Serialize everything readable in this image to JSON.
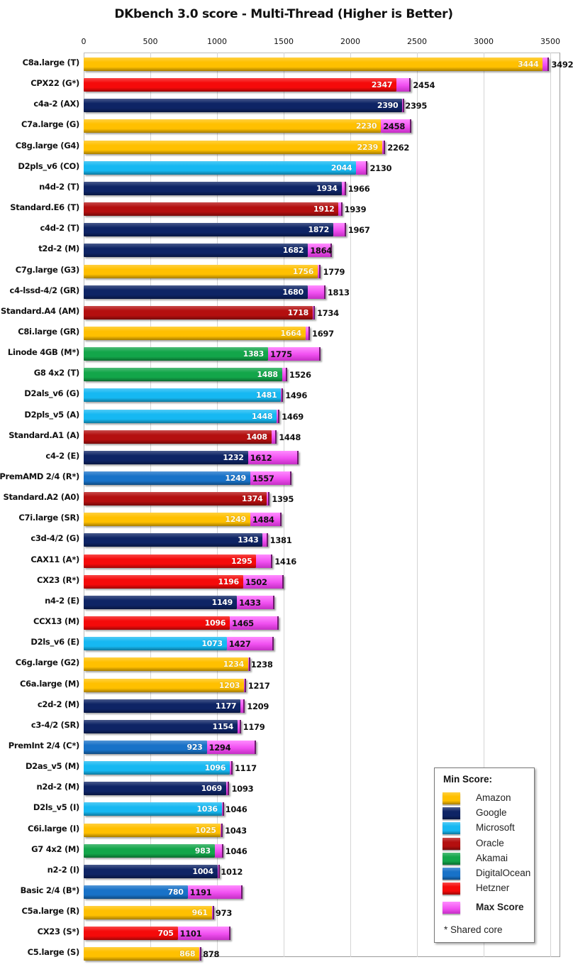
{
  "chart_data": {
    "type": "bar",
    "orientation": "horizontal",
    "title": "DKbench 3.0 score - Multi-Thread (Higher is Better)",
    "xlabel": "",
    "ylabel": "",
    "xlim": [
      0,
      3500
    ],
    "x_ticks": [
      "0",
      "500",
      "1000",
      "1500",
      "2000",
      "2500",
      "3000",
      "3500"
    ],
    "grid": true,
    "legend_position": "bottom-right",
    "legend": {
      "title": "Min Score:",
      "items": [
        {
          "name": "Amazon",
          "color": "#FFC000"
        },
        {
          "name": "Google",
          "color": "#0E2465"
        },
        {
          "name": "Microsoft",
          "color": "#16B8F2"
        },
        {
          "name": "Oracle",
          "color": "#B40F0F"
        },
        {
          "name": "Akamai",
          "color": "#13A64A"
        },
        {
          "name": "DigitalOcean",
          "color": "#1872C8"
        },
        {
          "name": "Hetzner",
          "color": "#F50A0A"
        }
      ],
      "max_label": "Max Score",
      "max_color": "#F050F0",
      "note": "* Shared core"
    },
    "categories": [
      "C8a.large (T)",
      "CPX22 (G*)",
      "c4a-2 (AX)",
      "C7a.large (G)",
      "C8g.large (G4)",
      "D2pls_v6 (CO)",
      "n4d-2 (T)",
      "Standard.E6 (T)",
      "c4d-2 (T)",
      "t2d-2 (M)",
      "C7g.large (G3)",
      "c4-lssd-4/2 (GR)",
      "Standard.A4 (AM)",
      "C8i.large (GR)",
      "Linode 4GB (M*)",
      "G8 4x2 (T)",
      "D2als_v6 (G)",
      "D2pls_v5 (A)",
      "Standard.A1 (A)",
      "c4-2 (E)",
      "PremAMD 2/4 (R*)",
      "Standard.A2 (A0)",
      "C7i.large (SR)",
      "c3d-4/2 (G)",
      "CAX11 (A*)",
      "CX23 (R*)",
      "n4-2 (E)",
      "CCX13 (M)",
      "D2ls_v6 (E)",
      "C6g.large (G2)",
      "C6a.large (M)",
      "c2d-2 (M)",
      "c3-4/2 (SR)",
      "PremInt 2/4 (C*)",
      "D2as_v5 (M)",
      "n2d-2 (M)",
      "D2ls_v5 (I)",
      "C6i.large (I)",
      "G7 4x2 (M)",
      "n2-2 (I)",
      "Basic 2/4 (B*)",
      "C5a.large (R)",
      "CX23 (S*)",
      "C5.large (S)"
    ],
    "providers": [
      "Amazon",
      "Hetzner",
      "Google",
      "Amazon",
      "Amazon",
      "Microsoft",
      "Google",
      "Oracle",
      "Google",
      "Google",
      "Amazon",
      "Google",
      "Oracle",
      "Amazon",
      "Akamai",
      "Akamai",
      "Microsoft",
      "Microsoft",
      "Oracle",
      "Google",
      "DigitalOcean",
      "Oracle",
      "Amazon",
      "Google",
      "Hetzner",
      "Hetzner",
      "Google",
      "Hetzner",
      "Microsoft",
      "Amazon",
      "Amazon",
      "Google",
      "Google",
      "DigitalOcean",
      "Microsoft",
      "Google",
      "Microsoft",
      "Amazon",
      "Akamai",
      "Google",
      "DigitalOcean",
      "Amazon",
      "Hetzner",
      "Amazon"
    ],
    "series": [
      {
        "name": "Min Score",
        "values": [
          3444,
          2347,
          2390,
          2230,
          2239,
          2044,
          1934,
          1912,
          1872,
          1682,
          1756,
          1680,
          1718,
          1664,
          1383,
          1488,
          1481,
          1448,
          1408,
          1232,
          1249,
          1374,
          1249,
          1343,
          1295,
          1196,
          1149,
          1096,
          1073,
          1234,
          1203,
          1177,
          1154,
          923,
          1096,
          1069,
          1036,
          1025,
          983,
          1004,
          780,
          961,
          705,
          868
        ]
      },
      {
        "name": "Max Score",
        "values": [
          3492,
          2454,
          2395,
          2458,
          2262,
          2130,
          1966,
          1939,
          1967,
          1864,
          1779,
          1813,
          1734,
          1697,
          1775,
          1526,
          1496,
          1469,
          1448,
          1612,
          1557,
          1395,
          1484,
          1381,
          1416,
          1502,
          1433,
          1465,
          1427,
          1238,
          1217,
          1209,
          1179,
          1294,
          1117,
          1093,
          1046,
          1043,
          1046,
          1012,
          1191,
          973,
          1101,
          878
        ]
      }
    ]
  }
}
